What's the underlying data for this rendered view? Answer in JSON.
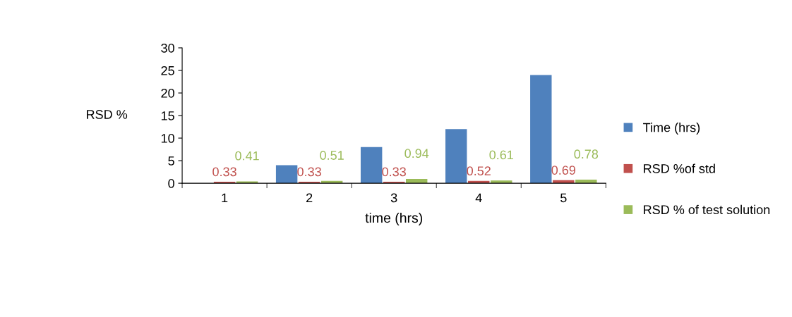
{
  "chart_data": {
    "type": "bar",
    "xlabel": "time (hrs)",
    "ylabel": "RSD %",
    "categories": [
      "1",
      "2",
      "3",
      "4",
      "5"
    ],
    "series": [
      {
        "name": "Time (hrs)",
        "color": "#4f81bd",
        "values": [
          0,
          4,
          8,
          12,
          24
        ]
      },
      {
        "name": "RSD %of std",
        "color": "#c0504d",
        "values": [
          0.33,
          0.33,
          0.33,
          0.52,
          0.69
        ],
        "value_labels": [
          "0.33",
          "0.33",
          "0.33",
          "0.52",
          "0.69"
        ]
      },
      {
        "name": "RSD % of test solution",
        "color": "#9bbb59",
        "values": [
          0.41,
          0.51,
          0.94,
          0.61,
          0.78
        ],
        "value_labels": [
          "0.41",
          "0.51",
          "0.94",
          "0.61",
          "0.78"
        ]
      }
    ],
    "ylim": [
      0,
      30
    ],
    "yticks": [
      0,
      5,
      10,
      15,
      20,
      25,
      30
    ],
    "grid": false,
    "legend": "right"
  }
}
